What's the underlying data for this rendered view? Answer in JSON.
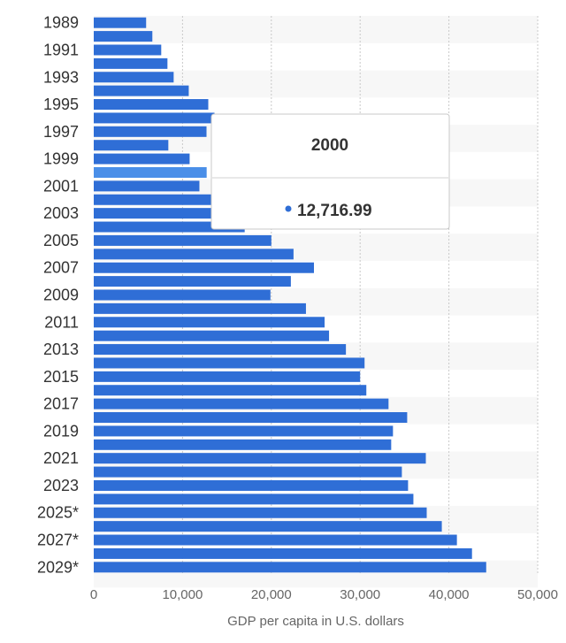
{
  "chart_data": {
    "type": "bar",
    "orientation": "horizontal",
    "xlabel": "GDP per capita in U.S. dollars",
    "xlim": [
      0,
      50000
    ],
    "x_ticks": [
      "0",
      "10,000",
      "20,000",
      "30,000",
      "40,000",
      "50,000"
    ],
    "x_tick_values": [
      0,
      10000,
      20000,
      30000,
      40000,
      50000
    ],
    "grid": true,
    "categories": [
      "1989",
      "1990",
      "1991",
      "1992",
      "1993",
      "1994",
      "1995",
      "1996",
      "1997",
      "1998",
      "1999",
      "2000",
      "2001",
      "2002",
      "2003",
      "2004",
      "2005",
      "2006",
      "2007",
      "2008",
      "2009",
      "2010",
      "2011",
      "2012",
      "2013",
      "2014",
      "2015",
      "2016",
      "2017",
      "2018",
      "2019",
      "2020",
      "2021",
      "2022",
      "2023",
      "2024*",
      "2025*",
      "2026*",
      "2027*",
      "2028*",
      "2029*"
    ],
    "category_labels_shown": [
      "1989",
      "1991",
      "1993",
      "1995",
      "1997",
      "1999",
      "2001",
      "2003",
      "2005",
      "2007",
      "2009",
      "2011",
      "2013",
      "2015",
      "2017",
      "2019",
      "2021",
      "2023",
      "2025*",
      "2027*",
      "2029*"
    ],
    "values": [
      5900,
      6600,
      7600,
      8300,
      9000,
      10700,
      12900,
      13600,
      12700,
      8400,
      10800,
      12716.99,
      11900,
      13300,
      13300,
      17000,
      20000,
      22500,
      24800,
      22200,
      19900,
      23900,
      26000,
      26500,
      28400,
      30500,
      30000,
      30700,
      33200,
      35300,
      33700,
      33500,
      37400,
      34700,
      35400,
      36000,
      37500,
      39200,
      40900,
      42600,
      44200
    ],
    "bar_color": "#2f6ed6",
    "highlight_index": 11,
    "highlight_color": "#4a8fe8",
    "tooltip": {
      "title": "2000",
      "value": "12,716.99",
      "marker_color": "#2f6ed6"
    }
  }
}
